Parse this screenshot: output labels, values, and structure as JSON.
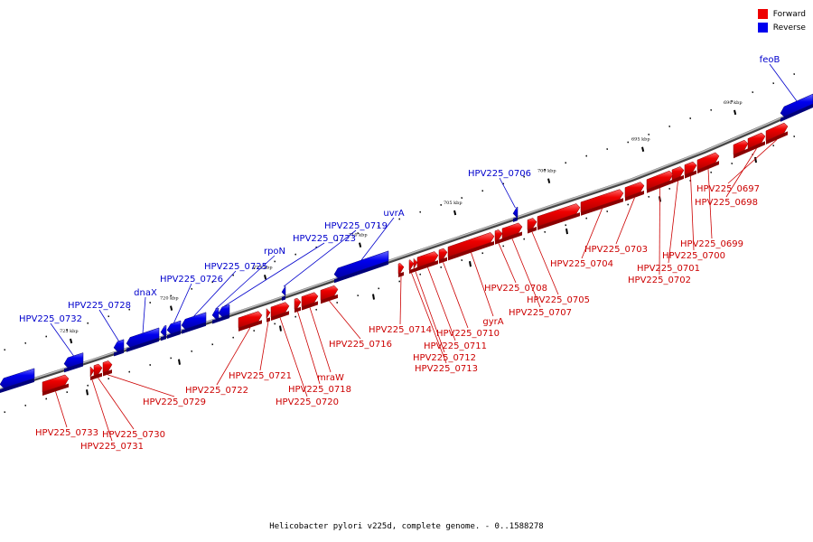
{
  "legend": [
    {
      "label": "Forward",
      "color": "#ee0000"
    },
    {
      "label": "Reverse",
      "color": "#0000ee"
    }
  ],
  "caption": "Helicobacter pylori v225d, complete genome. - 0..1588278",
  "ticks": [
    "690 kbp",
    "695 kbp",
    "700 kbp",
    "705 kbp",
    "710 kbp",
    "715 kbp",
    "720 kbp",
    "725 kbp"
  ],
  "forward_genes": [
    "HPV225_0697",
    "HPV225_0698",
    "HPV225_0699",
    "HPV225_0700",
    "HPV225_0701",
    "HPV225_0702",
    "HPV225_0703",
    "HPV225_0704",
    "HPV225_0705",
    "HPV225_0707",
    "HPV225_0708",
    "gyrA",
    "HPV225_0710",
    "HPV225_0711",
    "HPV225_0712",
    "HPV225_0713",
    "HPV225_0714",
    "HPV225_0716",
    "mraW",
    "HPV225_0718",
    "HPV225_0720",
    "HPV225_0721",
    "HPV225_0722",
    "HPV225_0729",
    "HPV225_0730",
    "HPV225_0731",
    "HPV225_0733"
  ],
  "reverse_genes": [
    "feoB",
    "HPV225_0706",
    "uvrA",
    "HPV225_0719",
    "HPV225_0723",
    "rpoN",
    "HPV225_0725",
    "HPV225_0726",
    "dnaX",
    "HPV225_0728",
    "HPV225_0732"
  ]
}
